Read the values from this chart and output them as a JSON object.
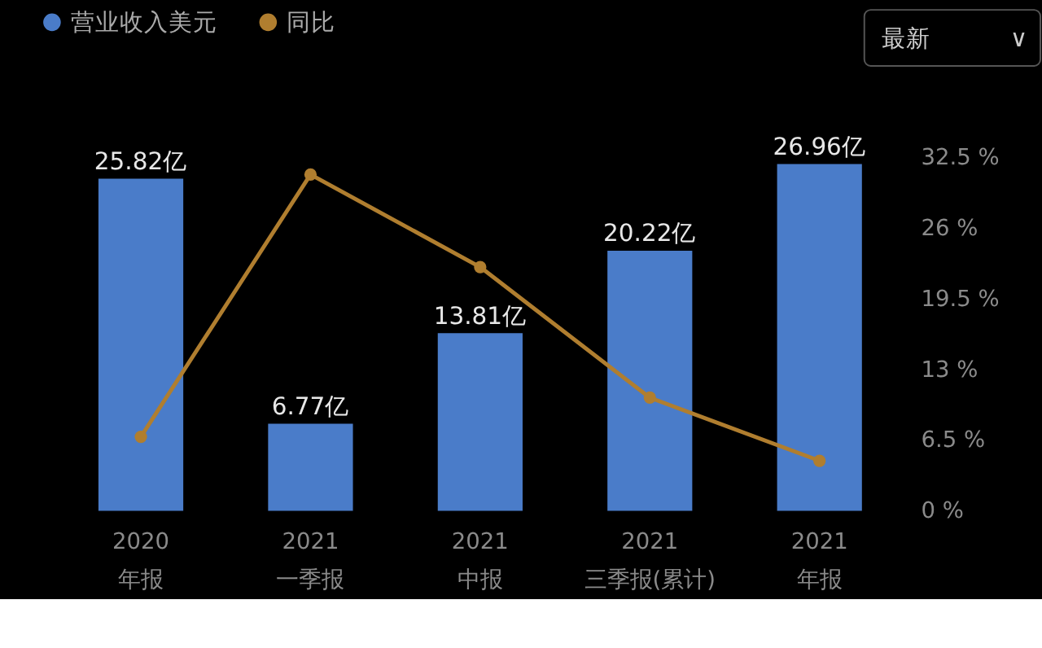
{
  "chart_data": {
    "type": "bar",
    "categories": [
      "2020\n年报",
      "2021\n一季报",
      "2021\n中报",
      "2021\n三季报(累计)",
      "2021\n年报"
    ],
    "series": [
      {
        "name": "营业收入美元",
        "color": "#4a7cc9",
        "values": [
          25.82,
          6.77,
          13.81,
          20.22,
          26.96
        ],
        "value_labels": [
          "25.82亿",
          "6.77亿",
          "13.81亿",
          "20.22亿",
          "26.96亿"
        ]
      },
      {
        "name": "同比",
        "type": "line",
        "axis": "y2",
        "color": "#b07e2f",
        "values": [
          6.8,
          30.9,
          22.4,
          10.4,
          4.6
        ],
        "marker": "circle"
      }
    ],
    "y2lim": [
      0,
      32.5
    ],
    "y2ticks": [
      {
        "value": 0,
        "label": "0 %"
      },
      {
        "value": 6.5,
        "label": "6.5 %"
      },
      {
        "value": 13,
        "label": "13 %"
      },
      {
        "value": 19.5,
        "label": "19.5 %"
      },
      {
        "value": 26,
        "label": "26 %"
      },
      {
        "value": 32.5,
        "label": "32.5 %"
      }
    ],
    "legend": "top left",
    "grid": false,
    "annotations": [
      "最新",
      "∨"
    ]
  }
}
